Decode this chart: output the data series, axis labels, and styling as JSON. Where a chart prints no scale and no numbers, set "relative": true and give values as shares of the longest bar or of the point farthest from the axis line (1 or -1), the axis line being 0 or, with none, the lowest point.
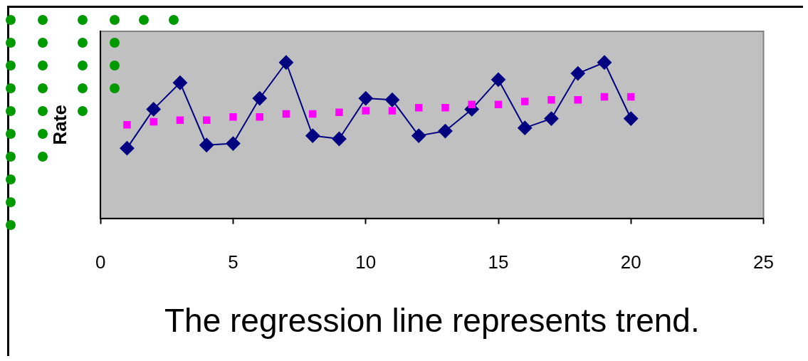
{
  "chart_data": {
    "type": "line",
    "relative": true,
    "xlabel": "The regression line represents trend.",
    "ylabel": "Rate",
    "xlim": [
      0,
      25
    ],
    "xticks": [
      0,
      5,
      10,
      15,
      20,
      25
    ],
    "grid": false,
    "legend": false,
    "series": [
      {
        "type": "line",
        "color": "#000080",
        "marker": "diamond",
        "line_style": "solid",
        "x": [
          1,
          2,
          3,
          4,
          5,
          6,
          7,
          8,
          9,
          10,
          11,
          12,
          13,
          14,
          15,
          16,
          17,
          18,
          19,
          20
        ],
        "values": [
          0.45,
          0.7,
          0.87,
          0.47,
          0.48,
          0.77,
          1,
          0.53,
          0.51,
          0.77,
          0.76,
          0.53,
          0.56,
          0.7,
          0.89,
          0.58,
          0.64,
          0.93,
          1,
          0.64
        ]
      },
      {
        "type": "scatter",
        "color": "#ff00ff",
        "marker": "square",
        "x": [
          1,
          2,
          3,
          4,
          5,
          6,
          7,
          8,
          9,
          10,
          11,
          12,
          13,
          14,
          15,
          16,
          17,
          18,
          19,
          20
        ],
        "values": [
          0.6,
          0.62,
          0.63,
          0.63,
          0.65,
          0.65,
          0.67,
          0.67,
          0.68,
          0.69,
          0.69,
          0.71,
          0.71,
          0.73,
          0.73,
          0.75,
          0.76,
          0.76,
          0.78,
          0.78
        ]
      }
    ]
  }
}
